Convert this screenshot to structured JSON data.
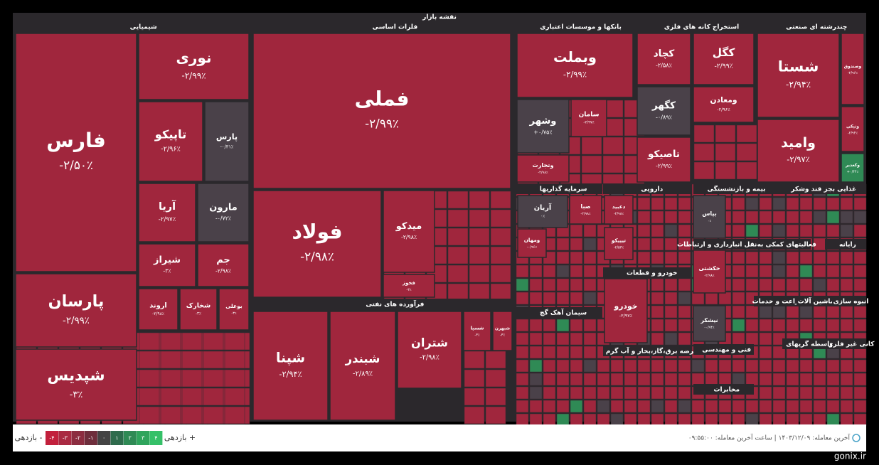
{
  "title": "نقشه بازار",
  "sectors": [
    {
      "label": "شیمیایی"
    },
    {
      "label": "فلزات اساسی"
    },
    {
      "label": "بانکها و موسسات اعتباری"
    },
    {
      "label": "استخراج کانه های فلزی"
    },
    {
      "label": "چندرشته ای صنعتی"
    },
    {
      "label": "فرآورده های نفتی"
    },
    {
      "label": "سرمایه گذاریها"
    },
    {
      "label": "دارویی"
    },
    {
      "label": "بیمه و بازنشستگی"
    },
    {
      "label": "غذایی بجز قند وشکر"
    },
    {
      "label": "خودرو و قطعات"
    },
    {
      "label": "سیمان آهک گچ"
    },
    {
      "label": "عرضه برق،گاز،بخار و آب گرم"
    },
    {
      "label": "فنی و مهندسی"
    },
    {
      "label": "حمل و نقل انبارداری و ارتباطات"
    },
    {
      "label": "فعالیتهای کمکی به"
    },
    {
      "label": "رایانه"
    },
    {
      "label": "زراعت و خدمات"
    },
    {
      "label": "ماشین آلات"
    },
    {
      "label": "انبوه سازی"
    },
    {
      "label": "واسطه گریهای"
    },
    {
      "label": "کانی غیر فلزی"
    },
    {
      "label": "مخابرات"
    }
  ],
  "tiles": [
    {
      "name": "فارس",
      "change": "-۲/۵۰٪"
    },
    {
      "name": "پارسان",
      "change": "-۲/۹۹٪"
    },
    {
      "name": "شپدیس",
      "change": "-۳٪"
    },
    {
      "name": "نوری",
      "change": "-۲/۹۹٪"
    },
    {
      "name": "تاپیکو",
      "change": "-۲/۹۶٪"
    },
    {
      "name": "پارس",
      "change": "-۰/۳۱٪"
    },
    {
      "name": "آریا",
      "change": "-۲/۹۷٪"
    },
    {
      "name": "مارون",
      "change": "-۰/۷۲٪"
    },
    {
      "name": "شیراز",
      "change": "-۳٪"
    },
    {
      "name": "جم",
      "change": "-۲/۹۸٪"
    },
    {
      "name": "اروند",
      "change": "-۲/۹۸٪"
    },
    {
      "name": "شخارک",
      "change": "-۳٪"
    },
    {
      "name": "بوعلی",
      "change": "-۳٪"
    },
    {
      "name": "فملی",
      "change": "-۲/۹۹٪"
    },
    {
      "name": "فولاد",
      "change": "-۲/۹۸٪"
    },
    {
      "name": "میدکو",
      "change": "-۲/۹۸٪"
    },
    {
      "name": "فخوز",
      "change": "-۳٪"
    },
    {
      "name": "شپنا",
      "change": "-۲/۹۴٪"
    },
    {
      "name": "شبندر",
      "change": "-۲/۸۹٪"
    },
    {
      "name": "شتران",
      "change": "-۲/۹۸٪"
    },
    {
      "name": "شسپا",
      "change": "-۳٪"
    },
    {
      "name": "شبهرن",
      "change": "-۳٪"
    },
    {
      "name": "وبملت",
      "change": "-۲/۹۹٪"
    },
    {
      "name": "وشهر",
      "change": "+۰/۷۵٪"
    },
    {
      "name": "وتجارت",
      "change": "-۲/۹۸٪"
    },
    {
      "name": "سامان",
      "change": "-۲/۹۷٪"
    },
    {
      "name": "کچاد",
      "change": "-۲/۵۸٪"
    },
    {
      "name": "کگل",
      "change": "-۲/۹۹٪"
    },
    {
      "name": "کگهر",
      "change": "-۰/۸۹٪"
    },
    {
      "name": "تاصیکو",
      "change": "-۲/۹۹٪"
    },
    {
      "name": "ومعادن",
      "change": "-۲/۹۶٪"
    },
    {
      "name": "شستا",
      "change": "-۲/۹۴٪"
    },
    {
      "name": "وامید",
      "change": "-۲/۹۷٪"
    },
    {
      "name": "وصندوق",
      "change": "-۲/۹۶٪"
    },
    {
      "name": "ونیکی",
      "change": "-۲/۹۴٪"
    },
    {
      "name": "وکغدیر",
      "change": "+۰/۴۴٪"
    },
    {
      "name": "آریان",
      "change": "۰٪"
    },
    {
      "name": "صبا",
      "change": "-۲/۹۸٪"
    },
    {
      "name": "ومهان",
      "change": "-۰/۹۶٪"
    },
    {
      "name": "دعبید",
      "change": "-۲/۹۸٪"
    },
    {
      "name": "تیپیکو",
      "change": "-۲/۵۳٪"
    },
    {
      "name": "خودرو",
      "change": "-۲/۹۷٪"
    },
    {
      "name": "بپاس",
      "change": "۰٪"
    },
    {
      "name": "حکشتی",
      "change": "-۲/۹۸٪"
    },
    {
      "name": "نیشکر",
      "change": "-۰/۹۴٪"
    }
  ],
  "legend": {
    "low": "بازدهی -",
    "high": "بازدهی +",
    "steps": [
      "-۴",
      "-۳",
      "-۲",
      "-۱",
      "۰",
      "۱",
      "۲",
      "۳",
      "۴"
    ]
  },
  "footer": {
    "last_trade": "آخرین معامله: ۱۴۰۳/۱۲/۰۹ | ساعت آخرین معامله: ۰۹:۵۵:۰۰"
  },
  "watermark": "gonix.ir"
}
